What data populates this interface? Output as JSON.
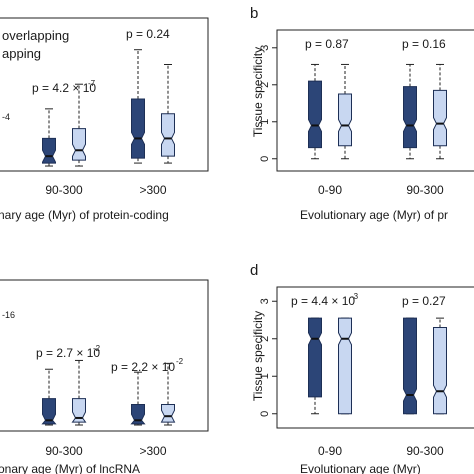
{
  "colors": {
    "dark": "#2c4577",
    "light": "#c8d7f1",
    "axis": "#222222",
    "text": "#1a1a1a"
  },
  "chart_data": [
    {
      "panel": "a",
      "type": "boxplot",
      "legend_entries": [
        "overlapping",
        "apping"
      ],
      "categories": [
        "90-300",
        ">300"
      ],
      "xlabel": "nary age (Myr) of protein-coding",
      "ylabel": "",
      "fragments": [
        "-4"
      ],
      "p_values": [
        "p = 4.2 × 10",
        "p = 0.24"
      ],
      "p_exponents": [
        "-7",
        ""
      ],
      "series": [
        {
          "name": "overlapping",
          "boxes": [
            {
              "category": "90-300",
              "whisker_low": 0.02,
              "q1": 0.05,
              "median": 0.12,
              "q3": 0.3,
              "whisker_high": 0.6
            },
            {
              "category": ">300",
              "whisker_low": 0.05,
              "q1": 0.1,
              "median": 0.3,
              "q3": 0.7,
              "whisker_high": 1.2
            }
          ]
        },
        {
          "name": "apping",
          "boxes": [
            {
              "category": "90-300",
              "whisker_low": 0.02,
              "q1": 0.08,
              "median": 0.18,
              "q3": 0.4,
              "whisker_high": 0.85
            },
            {
              "category": ">300",
              "whisker_low": 0.05,
              "q1": 0.12,
              "median": 0.3,
              "q3": 0.55,
              "whisker_high": 1.05
            }
          ]
        }
      ],
      "ylim": [
        0,
        1.4
      ]
    },
    {
      "panel": "b",
      "type": "boxplot",
      "categories": [
        "0-90",
        "90-300"
      ],
      "xlabel": "Evolutionary age (Myr) of pr",
      "ylabel": "Tissue specificity",
      "yticks": [
        "0",
        "1",
        "2",
        "3"
      ],
      "p_values": [
        "p = 0.87",
        "p = 0.16"
      ],
      "series": [
        {
          "name": "dark",
          "boxes": [
            {
              "category": "0-90",
              "whisker_low": 0.0,
              "q1": 0.3,
              "median": 0.9,
              "q3": 2.1,
              "whisker_high": 2.55
            },
            {
              "category": "90-300",
              "whisker_low": 0.0,
              "q1": 0.3,
              "median": 0.9,
              "q3": 1.95,
              "whisker_high": 2.55
            }
          ]
        },
        {
          "name": "light",
          "boxes": [
            {
              "category": "0-90",
              "whisker_low": 0.0,
              "q1": 0.35,
              "median": 0.9,
              "q3": 1.75,
              "whisker_high": 2.55
            },
            {
              "category": "90-300",
              "whisker_low": 0.0,
              "q1": 0.35,
              "median": 0.95,
              "q3": 1.85,
              "whisker_high": 2.55
            }
          ]
        }
      ],
      "ylim": [
        -0.25,
        3.4
      ]
    },
    {
      "panel": "c",
      "type": "boxplot",
      "categories": [
        "90-300",
        ">300"
      ],
      "xlabel": "onary age (Myr) of lncRNA",
      "ylabel": "",
      "fragments": [
        "-16"
      ],
      "p_values": [
        "p = 2.7 × 10",
        "p = 2.2 × 10"
      ],
      "p_exponents": [
        "-2",
        "-2"
      ],
      "series": [
        {
          "name": "dark",
          "boxes": [
            {
              "category": "90-300",
              "whisker_low": 0.0,
              "q1": 0.02,
              "median": 0.08,
              "q3": 0.45,
              "whisker_high": 0.95
            },
            {
              "category": ">300",
              "whisker_low": 0.0,
              "q1": 0.02,
              "median": 0.08,
              "q3": 0.35,
              "whisker_high": 0.9
            }
          ]
        },
        {
          "name": "light",
          "boxes": [
            {
              "category": "90-300",
              "whisker_low": 0.0,
              "q1": 0.05,
              "median": 0.12,
              "q3": 0.45,
              "whisker_high": 1.1
            },
            {
              "category": ">300",
              "whisker_low": 0.0,
              "q1": 0.05,
              "median": 0.15,
              "q3": 0.35,
              "whisker_high": 1.05
            }
          ]
        }
      ],
      "ylim": [
        0,
        2.3
      ]
    },
    {
      "panel": "d",
      "type": "boxplot",
      "categories": [
        "0-90",
        "90-300"
      ],
      "xlabel": "Evolutionary age (Myr)",
      "ylabel": "Tissue specificity",
      "yticks": [
        "0",
        "1",
        "2",
        "3"
      ],
      "p_values": [
        "p = 4.4 × 10",
        "p = 0.27"
      ],
      "p_exponents": [
        "-3",
        ""
      ],
      "series": [
        {
          "name": "dark",
          "boxes": [
            {
              "category": "0-90",
              "whisker_low": 0.0,
              "q1": 0.45,
              "median": 2.0,
              "q3": 2.55,
              "whisker_high": 2.55
            },
            {
              "category": "90-300",
              "whisker_low": 0.0,
              "q1": 0.0,
              "median": 0.5,
              "q3": 2.55,
              "whisker_high": 2.55
            }
          ]
        },
        {
          "name": "light",
          "boxes": [
            {
              "category": "0-90",
              "whisker_low": 0.0,
              "q1": 0.0,
              "median": 2.0,
              "q3": 2.55,
              "whisker_high": 2.55
            },
            {
              "category": "90-300",
              "whisker_low": 0.0,
              "q1": 0.0,
              "median": 0.6,
              "q3": 2.3,
              "whisker_high": 2.55
            }
          ]
        }
      ],
      "ylim": [
        -0.3,
        3.3
      ]
    }
  ],
  "panels": {
    "b": "b",
    "d": "d"
  }
}
